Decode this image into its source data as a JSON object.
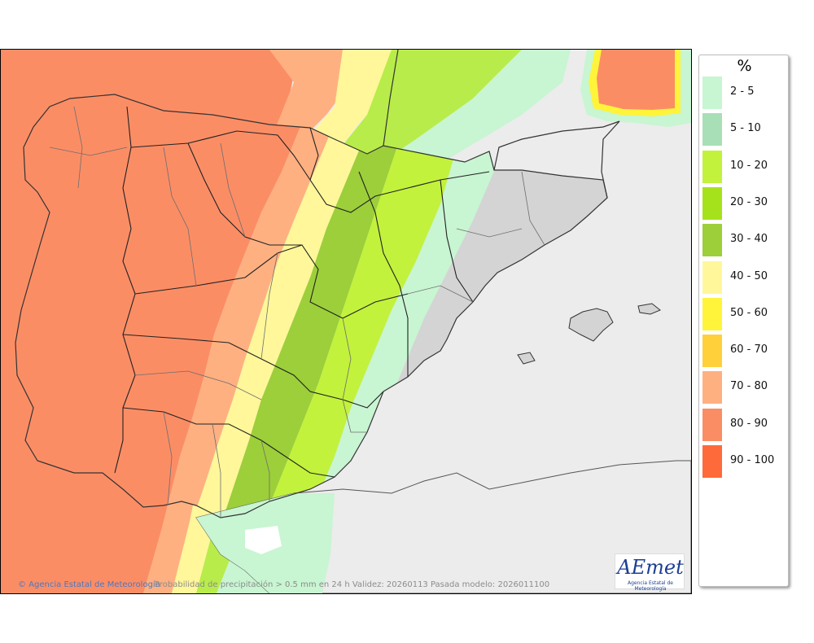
{
  "legend": {
    "unit": "%",
    "classes": [
      {
        "label": "2 - 5",
        "color": "#c8f5d2"
      },
      {
        "label": "5 - 10",
        "color": "#a8dfb6"
      },
      {
        "label": "10 - 20",
        "color": "#c2f23c"
      },
      {
        "label": "20 - 30",
        "color": "#a6e21c"
      },
      {
        "label": "30 - 40",
        "color": "#9ccf3a"
      },
      {
        "label": "40 - 50",
        "color": "#fff79a"
      },
      {
        "label": "50 - 60",
        "color": "#fff43a"
      },
      {
        "label": "60 - 70",
        "color": "#ffd03a"
      },
      {
        "label": "70 - 80",
        "color": "#ffb081"
      },
      {
        "label": "80 - 90",
        "color": "#fb8d65"
      },
      {
        "label": "90 - 100",
        "color": "#ff6a3a"
      }
    ]
  },
  "map": {
    "land_dry_color": "#d4d4d4",
    "sea_dry_color": "#ececec"
  },
  "footer": {
    "credit": "© Agencia Estatal de Meteorología",
    "caption": "Probabilidad de precipitación > 0.5 mm en 24 h Validez: 20260113 Pasada modelo: 2026011100"
  },
  "logo": {
    "word": "AEmet",
    "subtitle": "Agencia Estatal de Meteorología"
  }
}
